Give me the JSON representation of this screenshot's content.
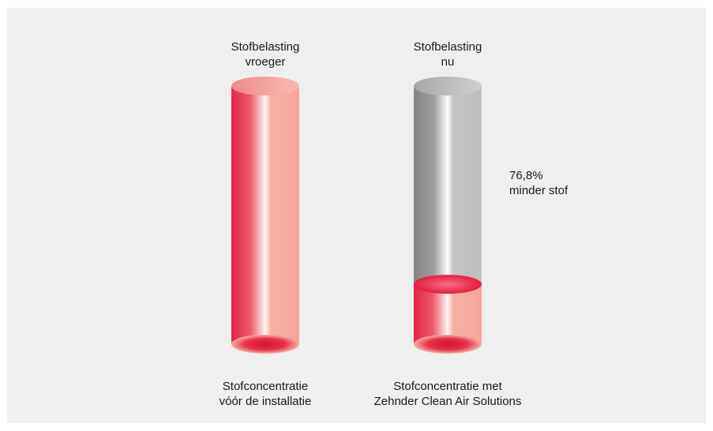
{
  "chart_data": {
    "type": "bar",
    "categories": [
      "Stofbelasting\nvroeger",
      "Stofbelasting\nnu"
    ],
    "values": [
      100,
      23.2
    ],
    "reduction_percent": 76.8,
    "ylim": [
      0,
      100
    ],
    "top_labels": [
      "Stofbelasting\nvroeger",
      "Stofbelasting\nnu"
    ],
    "bottom_labels": [
      "Stofconcentratie\nvóór de installatie",
      "Stofconcentratie met\nZehnder Clean Air Solutions"
    ],
    "annotation": "76,8%\nminder stof",
    "colors": {
      "dust_dark": "#e3264a",
      "dust_light": "#f5a89c",
      "empty_dark": "#8c8c8c",
      "empty_light": "#c2c2c2"
    }
  }
}
